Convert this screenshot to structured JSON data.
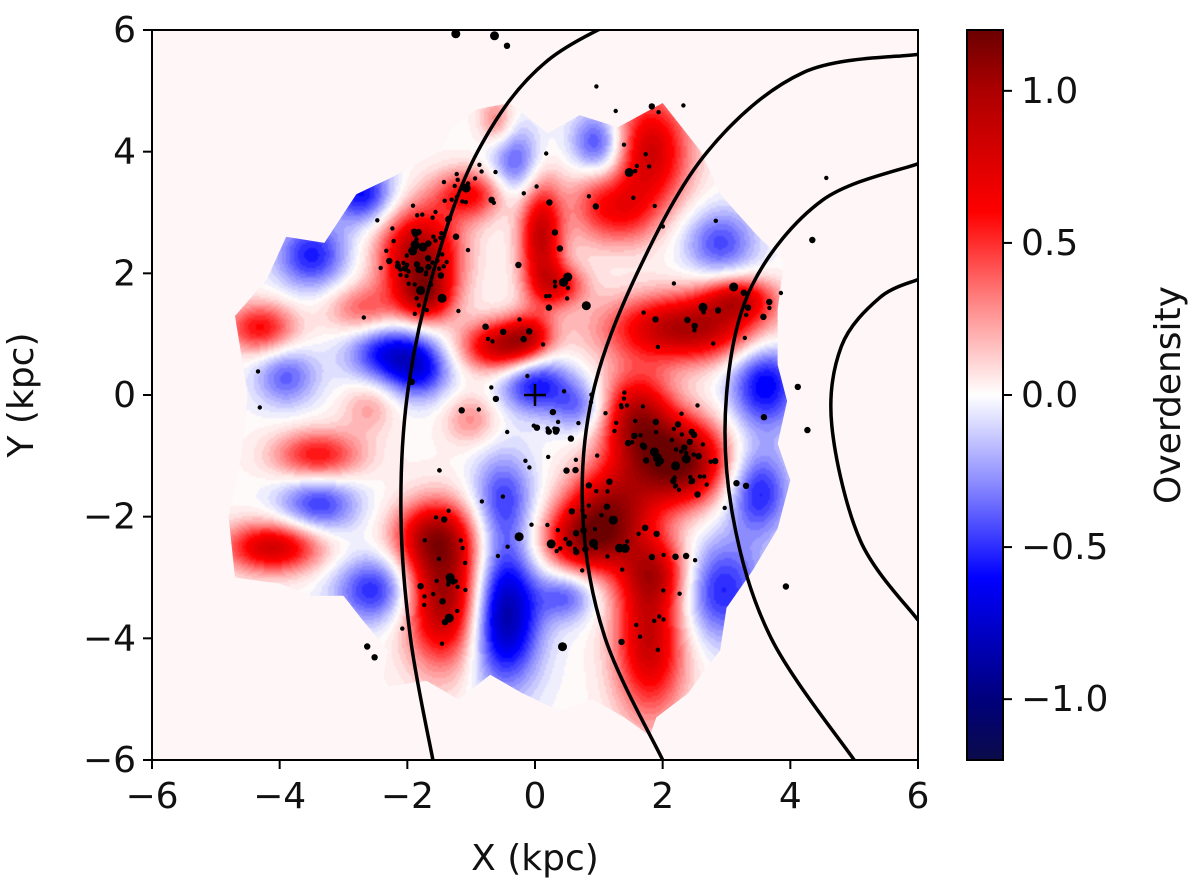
{
  "chart_data": {
    "type": "heatmap",
    "title": "",
    "xlabel": "X (kpc)",
    "ylabel": "Y (kpc)",
    "xlim": [
      -6,
      6
    ],
    "ylim": [
      -6,
      6
    ],
    "xticks": [
      -6,
      -4,
      -2,
      0,
      2,
      4,
      6
    ],
    "yticks": [
      -6,
      -4,
      -2,
      0,
      2,
      4,
      6
    ],
    "xtick_labels": [
      "−6",
      "−4",
      "−2",
      "0",
      "2",
      "4",
      "6"
    ],
    "ytick_labels": [
      "−6",
      "−4",
      "−2",
      "0",
      "2",
      "4",
      "6"
    ],
    "colorbar": {
      "label": "Overdensity",
      "range": [
        -1.2,
        1.2
      ],
      "ticks": [
        1.0,
        0.5,
        0.0,
        -0.5,
        -1.0
      ],
      "tick_labels": [
        "1.0",
        "0.5",
        "0.0",
        "−0.5",
        "−1.0"
      ],
      "colormap": [
        "#0b0b4a",
        "#0000ff",
        "#ffffff",
        "#ff0000",
        "#6b0000"
      ]
    },
    "sun_marker": {
      "x": 0,
      "y": 0,
      "symbol": "+"
    },
    "arcs": [
      {
        "name": "arc-1",
        "points": [
          [
            -1.6,
            -6
          ],
          [
            -1.95,
            -4
          ],
          [
            -2.1,
            -2
          ],
          [
            -2.0,
            0
          ],
          [
            -1.6,
            2
          ],
          [
            -0.9,
            4
          ],
          [
            0.2,
            5.5
          ],
          [
            2.0,
            6.5
          ]
        ]
      },
      {
        "name": "arc-2",
        "points": [
          [
            2.0,
            -6
          ],
          [
            1.1,
            -4
          ],
          [
            0.75,
            -2
          ],
          [
            0.9,
            0
          ],
          [
            1.6,
            2
          ],
          [
            2.7,
            4
          ],
          [
            4.2,
            5.3
          ],
          [
            6,
            5.6
          ]
        ]
      },
      {
        "name": "arc-3",
        "points": [
          [
            5.0,
            -6
          ],
          [
            3.7,
            -4
          ],
          [
            3.1,
            -2
          ],
          [
            3.0,
            0
          ],
          [
            3.4,
            1.8
          ],
          [
            4.5,
            3.2
          ],
          [
            6,
            3.8
          ]
        ]
      },
      {
        "name": "arc-4",
        "points": [
          [
            6,
            -3.7
          ],
          [
            5.1,
            -2.4
          ],
          [
            4.65,
            -0.5
          ],
          [
            4.8,
            0.8
          ],
          [
            5.4,
            1.6
          ],
          [
            6,
            1.9
          ]
        ]
      }
    ],
    "blobs": [
      {
        "x": -1.8,
        "y": 2.3,
        "sx": 0.45,
        "sy": 0.55,
        "v": 1.0
      },
      {
        "x": -1.7,
        "y": 1.6,
        "sx": 0.3,
        "sy": 0.3,
        "v": 0.6
      },
      {
        "x": -1.0,
        "y": 3.3,
        "sx": 0.4,
        "sy": 0.3,
        "v": 0.6
      },
      {
        "x": 0.1,
        "y": 2.6,
        "sx": 0.25,
        "sy": 0.7,
        "v": 0.85
      },
      {
        "x": 0.4,
        "y": 1.8,
        "sx": 0.3,
        "sy": 0.25,
        "v": 0.5
      },
      {
        "x": 1.8,
        "y": 4.0,
        "sx": 0.45,
        "sy": 0.7,
        "v": 0.8
      },
      {
        "x": 1.4,
        "y": 3.0,
        "sx": 0.35,
        "sy": 0.4,
        "v": 0.4
      },
      {
        "x": -0.5,
        "y": 0.8,
        "sx": 0.45,
        "sy": 0.3,
        "v": 0.9
      },
      {
        "x": -0.1,
        "y": 1.0,
        "sx": 0.25,
        "sy": 0.25,
        "v": 0.4
      },
      {
        "x": 2.4,
        "y": 1.1,
        "sx": 0.9,
        "sy": 0.4,
        "v": 0.95
      },
      {
        "x": 3.2,
        "y": 1.6,
        "sx": 0.4,
        "sy": 0.25,
        "v": 0.6
      },
      {
        "x": 1.6,
        "y": -0.4,
        "sx": 0.4,
        "sy": 0.55,
        "v": 0.9
      },
      {
        "x": 2.3,
        "y": -1.1,
        "sx": 0.5,
        "sy": 0.5,
        "v": 1.15
      },
      {
        "x": 1.2,
        "y": -1.8,
        "sx": 0.5,
        "sy": 0.5,
        "v": 0.8
      },
      {
        "x": 0.8,
        "y": -2.4,
        "sx": 0.5,
        "sy": 0.4,
        "v": 0.85
      },
      {
        "x": 1.8,
        "y": -4.0,
        "sx": 0.4,
        "sy": 0.9,
        "v": 0.85
      },
      {
        "x": 1.9,
        "y": -2.9,
        "sx": 0.4,
        "sy": 0.4,
        "v": 0.55
      },
      {
        "x": -1.4,
        "y": -3.3,
        "sx": 0.45,
        "sy": 0.8,
        "v": 1.05
      },
      {
        "x": -1.6,
        "y": -2.3,
        "sx": 0.45,
        "sy": 0.4,
        "v": 0.65
      },
      {
        "x": -4.1,
        "y": -2.5,
        "sx": 0.55,
        "sy": 0.3,
        "v": 0.8
      },
      {
        "x": -4.3,
        "y": 1.1,
        "sx": 0.4,
        "sy": 0.3,
        "v": 0.6
      },
      {
        "x": -3.4,
        "y": -1.0,
        "sx": 0.5,
        "sy": 0.3,
        "v": 0.6
      },
      {
        "x": -2.7,
        "y": 1.4,
        "sx": 0.4,
        "sy": 0.3,
        "v": 0.4
      },
      {
        "x": -1.0,
        "y": -0.4,
        "sx": 0.3,
        "sy": 0.3,
        "v": 0.3
      },
      {
        "x": -0.6,
        "y": 4.5,
        "sx": 0.2,
        "sy": 0.3,
        "v": 0.35
      },
      {
        "x": 0.9,
        "y": 3.2,
        "sx": 0.3,
        "sy": 0.5,
        "v": 0.35
      },
      {
        "x": -2.7,
        "y": 3.3,
        "sx": 0.35,
        "sy": 0.35,
        "v": -0.6
      },
      {
        "x": -3.5,
        "y": 2.3,
        "sx": 0.4,
        "sy": 0.4,
        "v": -0.55
      },
      {
        "x": -2.3,
        "y": 0.7,
        "sx": 0.45,
        "sy": 0.35,
        "v": -0.6
      },
      {
        "x": -1.8,
        "y": 0.4,
        "sx": 0.35,
        "sy": 0.35,
        "v": -0.5
      },
      {
        "x": -0.3,
        "y": 3.8,
        "sx": 0.3,
        "sy": 0.45,
        "v": -0.45
      },
      {
        "x": 1.0,
        "y": 4.1,
        "sx": 0.3,
        "sy": 0.4,
        "v": -0.6
      },
      {
        "x": 2.9,
        "y": 2.5,
        "sx": 0.4,
        "sy": 0.4,
        "v": -0.45
      },
      {
        "x": 3.6,
        "y": 0.2,
        "sx": 0.4,
        "sy": 0.55,
        "v": -0.65
      },
      {
        "x": 3.5,
        "y": -1.6,
        "sx": 0.35,
        "sy": 0.5,
        "v": -0.55
      },
      {
        "x": 2.9,
        "y": -3.2,
        "sx": 0.5,
        "sy": 0.6,
        "v": -0.55
      },
      {
        "x": 0.0,
        "y": 0.2,
        "sx": 0.4,
        "sy": 0.35,
        "v": -0.6
      },
      {
        "x": 0.7,
        "y": -0.2,
        "sx": 0.3,
        "sy": 0.3,
        "v": -0.35
      },
      {
        "x": -0.5,
        "y": -1.7,
        "sx": 0.35,
        "sy": 0.55,
        "v": -0.45
      },
      {
        "x": -0.5,
        "y": -3.6,
        "sx": 0.4,
        "sy": 0.8,
        "v": -0.95
      },
      {
        "x": -2.5,
        "y": -3.2,
        "sx": 0.45,
        "sy": 0.4,
        "v": -0.55
      },
      {
        "x": -3.4,
        "y": -1.8,
        "sx": 0.45,
        "sy": 0.35,
        "v": -0.5
      },
      {
        "x": -3.9,
        "y": 0.3,
        "sx": 0.35,
        "sy": 0.35,
        "v": -0.4
      },
      {
        "x": 0.5,
        "y": -3.3,
        "sx": 0.3,
        "sy": 0.3,
        "v": -0.4
      },
      {
        "x": -2.6,
        "y": -0.2,
        "sx": 0.3,
        "sy": 0.3,
        "v": 0.25
      }
    ],
    "footprint": [
      [
        -4.7,
        -3.0
      ],
      [
        -4.8,
        -2.0
      ],
      [
        -4.6,
        -1.0
      ],
      [
        -4.5,
        0.0
      ],
      [
        -4.7,
        1.3
      ],
      [
        -4.2,
        1.9
      ],
      [
        -3.9,
        2.6
      ],
      [
        -3.3,
        2.5
      ],
      [
        -2.8,
        3.3
      ],
      [
        -2.2,
        3.6
      ],
      [
        -1.5,
        4.0
      ],
      [
        -1.3,
        4.4
      ],
      [
        -0.9,
        4.7
      ],
      [
        -0.4,
        4.8
      ],
      [
        0.2,
        4.3
      ],
      [
        0.7,
        4.6
      ],
      [
        1.3,
        4.4
      ],
      [
        2.0,
        4.8
      ],
      [
        2.6,
        4.0
      ],
      [
        2.9,
        3.3
      ],
      [
        3.5,
        2.6
      ],
      [
        3.9,
        2.2
      ],
      [
        3.8,
        1.4
      ],
      [
        3.8,
        0.5
      ],
      [
        3.95,
        -0.1
      ],
      [
        3.8,
        -0.8
      ],
      [
        4.0,
        -1.4
      ],
      [
        3.8,
        -2.2
      ],
      [
        3.4,
        -2.9
      ],
      [
        3.0,
        -3.5
      ],
      [
        2.9,
        -4.2
      ],
      [
        2.6,
        -4.6
      ],
      [
        2.4,
        -4.9
      ],
      [
        1.9,
        -5.3
      ],
      [
        1.8,
        -5.6
      ],
      [
        1.4,
        -5.3
      ],
      [
        0.9,
        -5.0
      ],
      [
        0.4,
        -5.2
      ],
      [
        -0.2,
        -4.9
      ],
      [
        -0.7,
        -4.6
      ],
      [
        -1.2,
        -5.0
      ],
      [
        -1.7,
        -4.7
      ],
      [
        -2.4,
        -4.8
      ],
      [
        -2.3,
        -4.2
      ],
      [
        -2.7,
        -3.7
      ],
      [
        -3.0,
        -3.3
      ],
      [
        -3.5,
        -3.3
      ],
      [
        -4.0,
        -3.1
      ]
    ],
    "clusters": [
      {
        "x": -1.8,
        "y": 2.3,
        "n": 60,
        "sx": 0.3,
        "sy": 0.4
      },
      {
        "x": -1.1,
        "y": 3.3,
        "n": 18,
        "sx": 0.35,
        "sy": 0.25
      },
      {
        "x": 0.4,
        "y": 1.8,
        "n": 10,
        "sx": 0.2,
        "sy": 0.15
      },
      {
        "x": 1.5,
        "y": 3.8,
        "n": 12,
        "sx": 0.35,
        "sy": 0.5
      },
      {
        "x": 2.3,
        "y": -1.0,
        "n": 35,
        "sx": 0.35,
        "sy": 0.45
      },
      {
        "x": 1.5,
        "y": -0.4,
        "n": 20,
        "sx": 0.3,
        "sy": 0.4
      },
      {
        "x": 1.0,
        "y": -1.9,
        "n": 25,
        "sx": 0.45,
        "sy": 0.4
      },
      {
        "x": 0.7,
        "y": -2.4,
        "n": 15,
        "sx": 0.25,
        "sy": 0.2
      },
      {
        "x": 1.8,
        "y": -3.4,
        "n": 15,
        "sx": 0.4,
        "sy": 0.8
      },
      {
        "x": -1.4,
        "y": -3.3,
        "n": 15,
        "sx": 0.2,
        "sy": 0.35
      },
      {
        "x": -1.6,
        "y": -2.4,
        "n": 12,
        "sx": 0.35,
        "sy": 0.4
      },
      {
        "x": 0.1,
        "y": -0.6,
        "n": 12,
        "sx": 0.25,
        "sy": 0.35
      },
      {
        "x": 2.5,
        "y": 1.2,
        "n": 15,
        "sx": 0.6,
        "sy": 0.35
      },
      {
        "x": -0.4,
        "y": 0.9,
        "n": 8,
        "sx": 0.3,
        "sy": 0.2
      },
      {
        "x": 0.3,
        "y": 2.4,
        "n": 6,
        "sx": 0.2,
        "sy": 0.4
      },
      {
        "x": 0.0,
        "y": 0.0,
        "n": 60,
        "sx": 2.8,
        "sy": 2.8
      }
    ]
  }
}
